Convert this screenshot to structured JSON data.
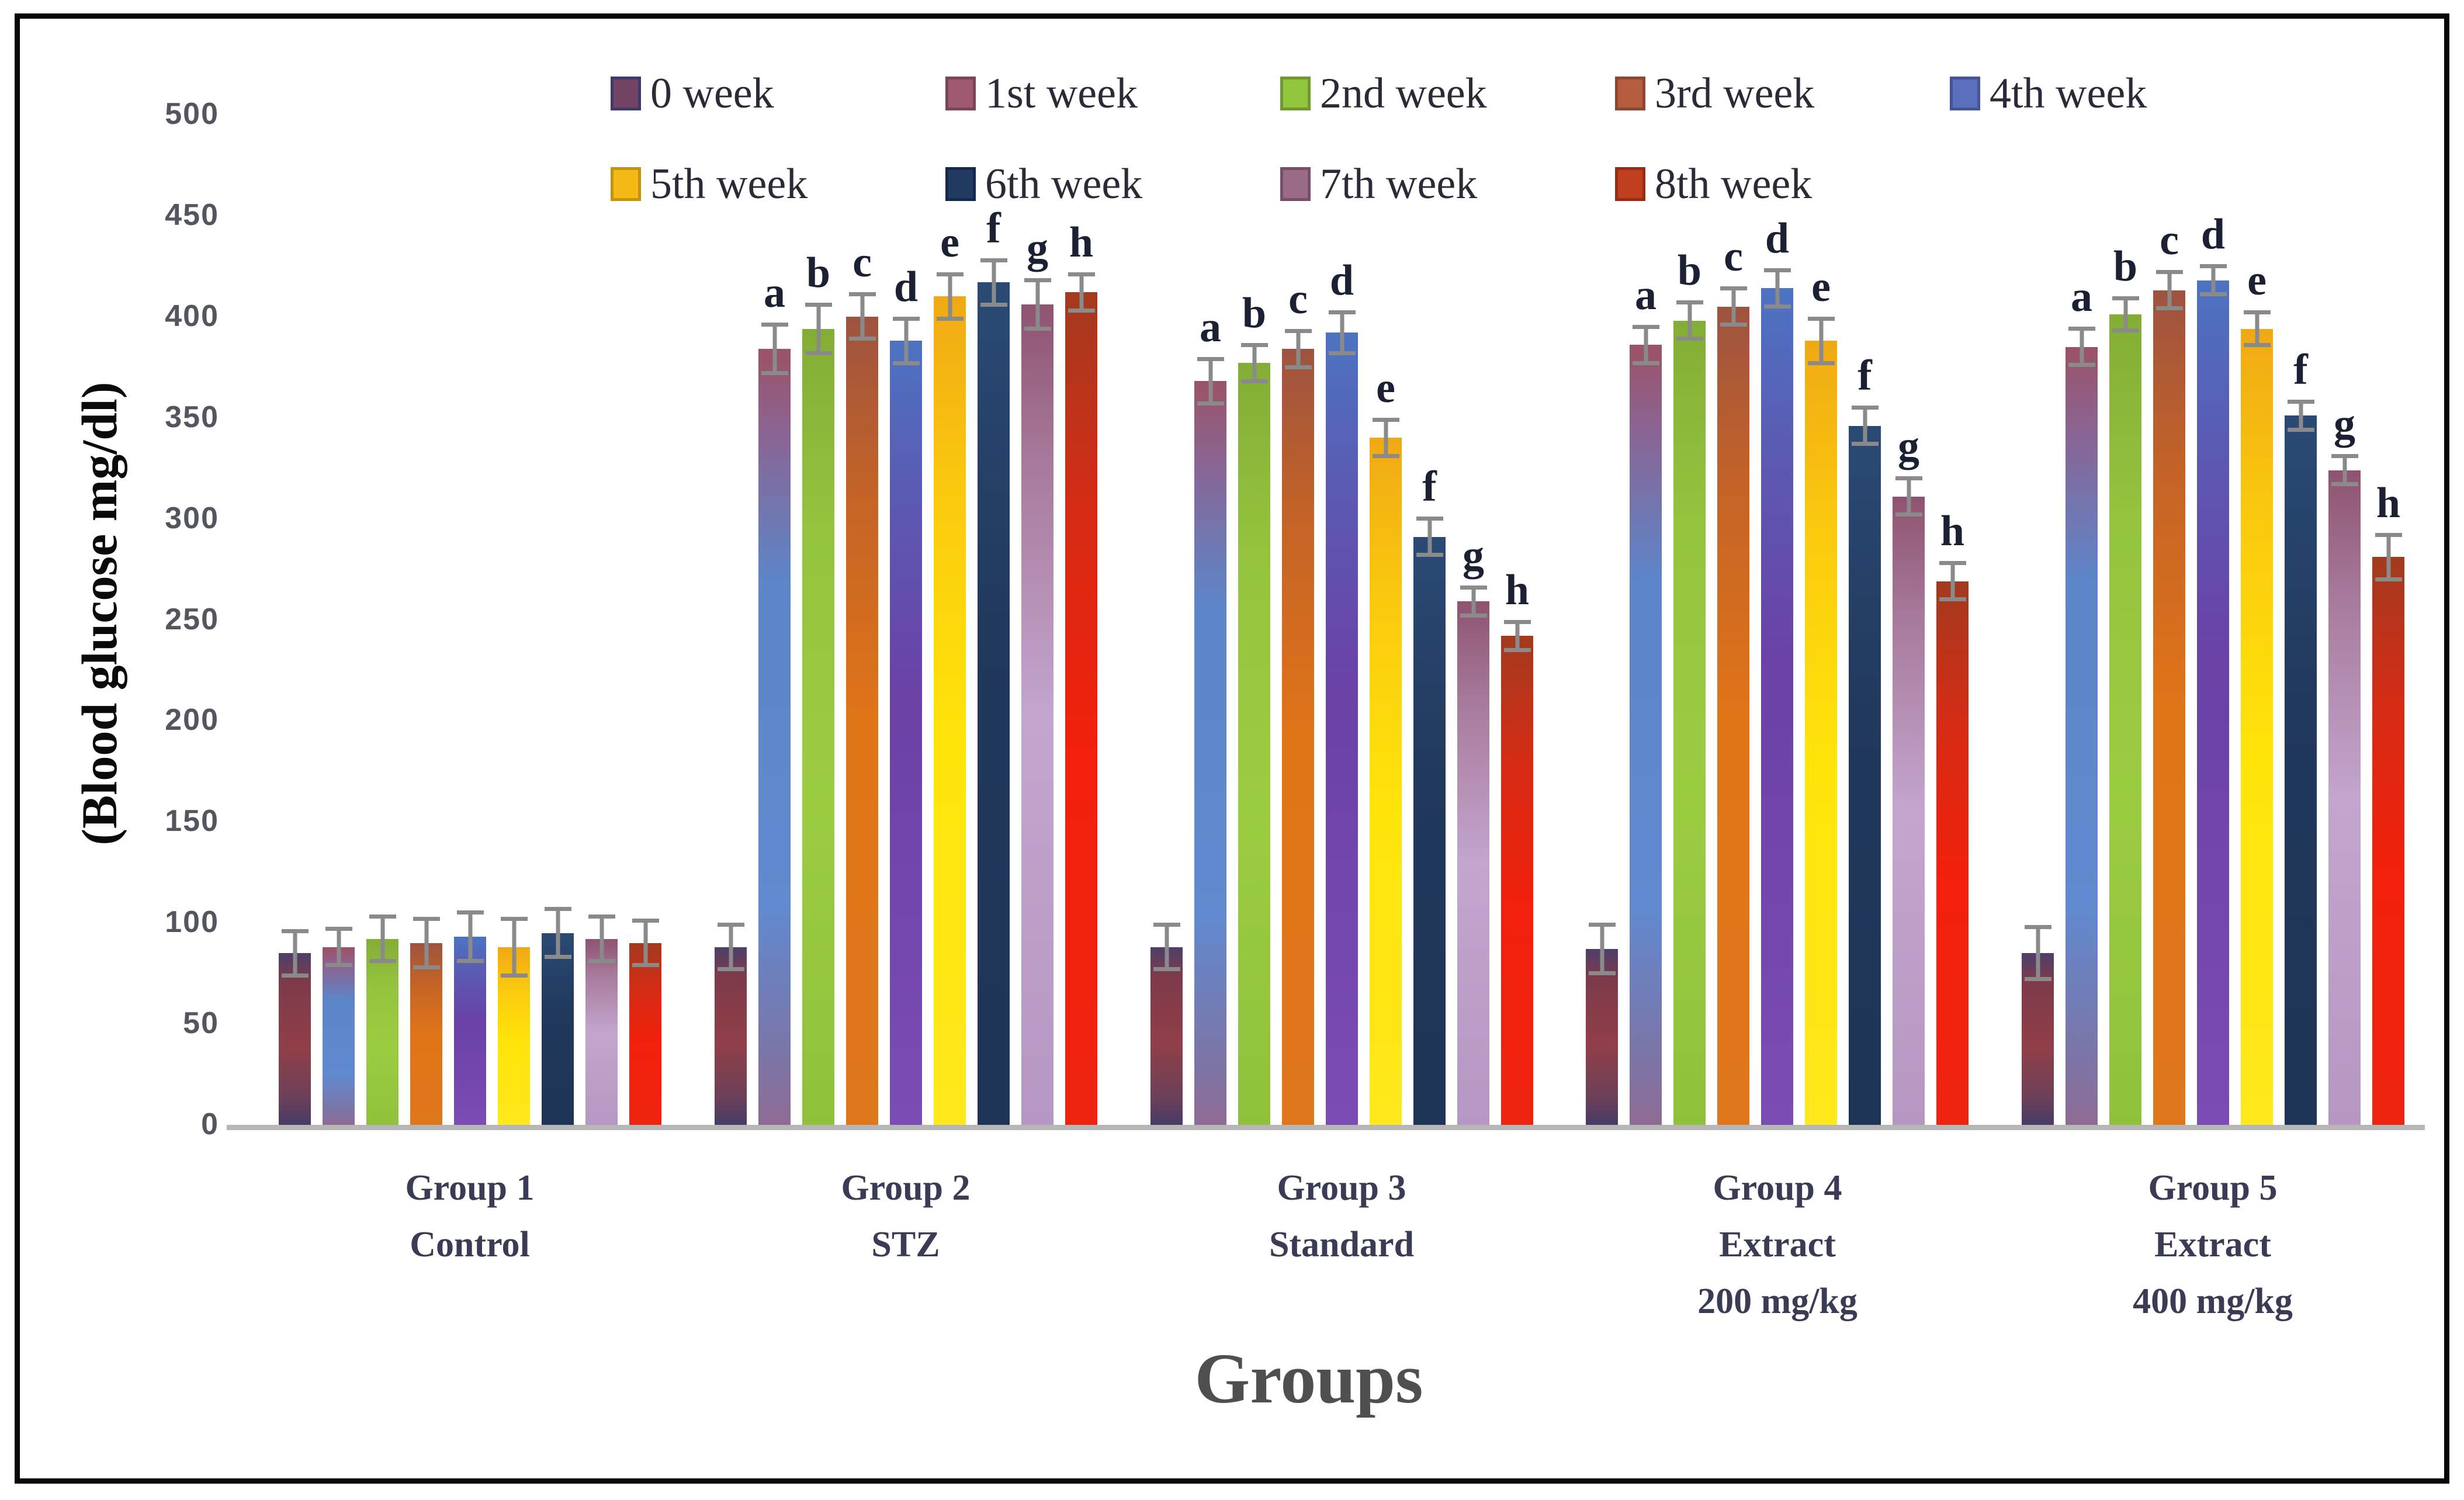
{
  "y_axis": {
    "label": "(Blood glucose mg/dl)",
    "ticks": [
      0,
      50,
      100,
      150,
      200,
      250,
      300,
      350,
      400,
      450,
      500
    ],
    "max": 500
  },
  "x_axis": {
    "title": "Groups",
    "group_labels": [
      [
        "Group 1",
        "Control"
      ],
      [
        "Group 2",
        "STZ"
      ],
      [
        "Group 3",
        "Standard"
      ],
      [
        "Group 4",
        "Extract",
        "200 mg/kg"
      ],
      [
        "Group 5",
        "Extract",
        "400 mg/kg"
      ]
    ]
  },
  "legend": {
    "items": [
      {
        "label": "0 week",
        "swatch_color": "#744464",
        "border_color": "#3f3a6e"
      },
      {
        "label": "1st week",
        "swatch_color": "#a05a70",
        "border_color": "#7c4458"
      },
      {
        "label": "2nd week",
        "swatch_color": "#92c63e",
        "border_color": "#6f9a2e"
      },
      {
        "label": "3rd week",
        "swatch_color": "#b65c3e",
        "border_color": "#8d4630"
      },
      {
        "label": "4th week",
        "swatch_color": "#5b70bd",
        "border_color": "#44549a"
      },
      {
        "label": "5th week",
        "swatch_color": "#f4bb16",
        "border_color": "#c69310"
      },
      {
        "label": "6th week",
        "swatch_color": "#203a62",
        "border_color": "#16294a"
      },
      {
        "label": "7th week",
        "swatch_color": "#9a6b86",
        "border_color": "#775068"
      },
      {
        "label": "8th week",
        "swatch_color": "#c03f1c",
        "border_color": "#932f15"
      }
    ]
  },
  "chart_data": {
    "type": "bar",
    "title": "",
    "xlabel": "Groups",
    "ylabel": "(Blood glucose mg/dl)",
    "ylim": [
      0,
      500
    ],
    "gridlines": false,
    "legend_position": "top",
    "error_bars": true,
    "error_bar_color": "#8a8a8a",
    "categories": [
      "Group 1 Control",
      "Group 2 STZ",
      "Group 3 Standard",
      "Group 4 Extract 200 mg/kg",
      "Group 5 Extract 400 mg/kg"
    ],
    "series": [
      {
        "name": "0 week",
        "color": "#744464",
        "values": [
          85,
          88,
          88,
          87,
          85
        ],
        "errors": [
          12,
          12,
          12,
          13,
          14
        ]
      },
      {
        "name": "1st week",
        "color": "#a05a70",
        "values": [
          88,
          384,
          368,
          386,
          385
        ],
        "errors": [
          10,
          13,
          12,
          10,
          10
        ]
      },
      {
        "name": "2nd week",
        "color": "#92c63e",
        "values": [
          92,
          394,
          377,
          398,
          401
        ],
        "errors": [
          12,
          13,
          10,
          10,
          9
        ]
      },
      {
        "name": "3rd week",
        "color": "#b65c3e",
        "values": [
          90,
          400,
          384,
          405,
          413
        ],
        "errors": [
          13,
          12,
          10,
          10,
          10
        ]
      },
      {
        "name": "4th week",
        "color": "#5b70bd",
        "values": [
          93,
          388,
          392,
          414,
          418
        ],
        "errors": [
          13,
          12,
          11,
          10,
          8
        ]
      },
      {
        "name": "5th week",
        "color": "#f4bb16",
        "values": [
          88,
          410,
          340,
          388,
          394
        ],
        "errors": [
          15,
          12,
          10,
          12,
          9
        ]
      },
      {
        "name": "6th week",
        "color": "#203a62",
        "values": [
          95,
          417,
          291,
          346,
          351
        ],
        "errors": [
          13,
          12,
          10,
          10,
          8
        ]
      },
      {
        "name": "7th week",
        "color": "#9a6b86",
        "values": [
          92,
          406,
          259,
          311,
          324
        ],
        "errors": [
          12,
          13,
          8,
          10,
          8
        ]
      },
      {
        "name": "8th week",
        "color": "#c03f1c",
        "values": [
          90,
          412,
          242,
          269,
          281
        ],
        "errors": [
          12,
          10,
          8,
          10,
          12
        ]
      }
    ],
    "significance_letters": {
      "letters": [
        "a",
        "b",
        "c",
        "d",
        "e",
        "f",
        "g",
        "h"
      ],
      "applies_to_series": [
        "1st week",
        "2nd week",
        "3rd week",
        "4th week",
        "5th week",
        "6th week",
        "7th week",
        "8th week"
      ],
      "applies_to_categories": [
        "Group 2 STZ",
        "Group 3 Standard",
        "Group 4 Extract 200 mg/kg",
        "Group 5 Extract 400 mg/kg"
      ]
    }
  }
}
